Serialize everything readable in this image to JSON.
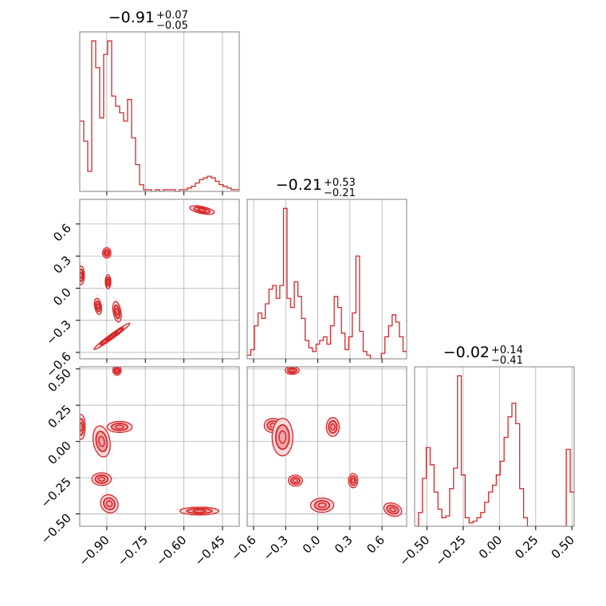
{
  "colors": {
    "line": "#d62728",
    "fill_inner": "#f2a7ad",
    "fill_outer": "#fbdadd",
    "grid": "#b0b0b0",
    "frame": "#808080"
  },
  "chart_data": {
    "type": "corner",
    "title": "",
    "grid": true,
    "parameters": [
      {
        "title": {
          "center": "−0.91",
          "upper": "+0.07",
          "lower": "−0.05"
        },
        "range": [
          -1.005,
          -0.385
        ],
        "ticks": [
          -0.9,
          -0.75,
          -0.6,
          -0.45
        ],
        "tick_labels": [
          "−0.90",
          "−0.75",
          "−0.60",
          "−0.45"
        ]
      },
      {
        "title": {
          "center": "−0.21",
          "upper": "+0.53",
          "lower": "−0.21"
        },
        "range": [
          -0.66,
          0.83
        ],
        "ticks": [
          -0.6,
          -0.3,
          0.0,
          0.3,
          0.6
        ],
        "tick_labels": [
          "−0.6",
          "−0.3",
          "0.0",
          "0.3",
          "0.6"
        ]
      },
      {
        "title": {
          "center": "−0.02",
          "upper": "+0.14",
          "lower": "−0.41"
        },
        "range": [
          -0.585,
          0.515
        ],
        "ticks": [
          -0.5,
          -0.25,
          0.0,
          0.25,
          0.5
        ],
        "tick_labels": [
          "−0.50",
          "−0.25",
          "0.00",
          "0.25",
          "0.50"
        ]
      }
    ],
    "histograms": [
      {
        "parameter": 0,
        "bin_edges_range": [
          -1.005,
          -0.385
        ],
        "counts": [
          42,
          30,
          12,
          90,
          74,
          44,
          82,
          90,
          57,
          51,
          47,
          42,
          55,
          32,
          16,
          4,
          1,
          1,
          0,
          1,
          0,
          1,
          1,
          1,
          0,
          1,
          1,
          2,
          3,
          5,
          7,
          8,
          9,
          8,
          6,
          4,
          3,
          2,
          1,
          1
        ]
      },
      {
        "parameter": 1,
        "bin_edges_range": [
          -0.66,
          0.83
        ],
        "counts": [
          2,
          5,
          18,
          25,
          22,
          30,
          38,
          40,
          33,
          40,
          82,
          33,
          28,
          42,
          34,
          22,
          10,
          6,
          4,
          8,
          10,
          12,
          8,
          18,
          34,
          28,
          14,
          5,
          12,
          25,
          56,
          15,
          4,
          2,
          0,
          0,
          0,
          3,
          12,
          18,
          24,
          20,
          12,
          4
        ]
      },
      {
        "parameter": 2,
        "bin_edges_range": [
          -0.585,
          0.515
        ],
        "counts": [
          0,
          8,
          28,
          46,
          36,
          20,
          10,
          5,
          6,
          22,
          34,
          88,
          30,
          5,
          2,
          3,
          5,
          8,
          14,
          20,
          24,
          30,
          38,
          52,
          64,
          72,
          60,
          22,
          5,
          0,
          0,
          0,
          0,
          0,
          0,
          0,
          0,
          0,
          0,
          45,
          20
        ]
      }
    ],
    "panels_2d": [
      {
        "x_param": 0,
        "y_param": 1,
        "blobs": [
          {
            "cx": -0.53,
            "cy": 0.73,
            "rx": 0.045,
            "ry": 0.03,
            "angle": -12
          },
          {
            "cx": -1.0,
            "cy": 0.12,
            "rx": 0.012,
            "ry": 0.08,
            "angle": 0
          },
          {
            "cx": -0.9,
            "cy": 0.33,
            "rx": 0.015,
            "ry": 0.045,
            "angle": 0
          },
          {
            "cx": -0.895,
            "cy": 0.06,
            "rx": 0.01,
            "ry": 0.06,
            "angle": 0
          },
          {
            "cx": -0.934,
            "cy": -0.17,
            "rx": 0.012,
            "ry": 0.07,
            "angle": 10
          },
          {
            "cx": -0.86,
            "cy": -0.22,
            "rx": 0.014,
            "ry": 0.09,
            "angle": 10
          },
          {
            "cx": -0.88,
            "cy": -0.45,
            "rx": 0.08,
            "ry": 0.02,
            "angle": 36
          }
        ]
      },
      {
        "x_param": 0,
        "y_param": 2,
        "blobs": [
          {
            "cx": -0.86,
            "cy": 0.49,
            "rx": 0.015,
            "ry": 0.03,
            "angle": 0
          },
          {
            "cx": -1.0,
            "cy": 0.1,
            "rx": 0.015,
            "ry": 0.08,
            "angle": 0
          },
          {
            "cx": -0.85,
            "cy": 0.1,
            "rx": 0.045,
            "ry": 0.035,
            "angle": 0
          },
          {
            "cx": -0.92,
            "cy": 0.0,
            "rx": 0.03,
            "ry": 0.1,
            "angle": 10
          },
          {
            "cx": -0.92,
            "cy": -0.26,
            "rx": 0.035,
            "ry": 0.04,
            "angle": 0
          },
          {
            "cx": -0.89,
            "cy": -0.43,
            "rx": 0.03,
            "ry": 0.06,
            "angle": 40
          },
          {
            "cx": -0.54,
            "cy": -0.48,
            "rx": 0.07,
            "ry": 0.025,
            "angle": 0
          }
        ]
      },
      {
        "x_param": 1,
        "y_param": 2,
        "blobs": [
          {
            "cx": -0.24,
            "cy": 0.49,
            "rx": 0.06,
            "ry": 0.025,
            "angle": 0
          },
          {
            "cx": -0.42,
            "cy": 0.11,
            "rx": 0.075,
            "ry": 0.045,
            "angle": 0
          },
          {
            "cx": -0.33,
            "cy": 0.03,
            "rx": 0.09,
            "ry": 0.12,
            "angle": 0
          },
          {
            "cx": 0.14,
            "cy": 0.1,
            "rx": 0.055,
            "ry": 0.06,
            "angle": 0
          },
          {
            "cx": -0.21,
            "cy": -0.27,
            "rx": 0.06,
            "ry": 0.035,
            "angle": 0
          },
          {
            "cx": 0.33,
            "cy": -0.27,
            "rx": 0.04,
            "ry": 0.045,
            "angle": 0
          },
          {
            "cx": 0.04,
            "cy": -0.44,
            "rx": 0.1,
            "ry": 0.045,
            "angle": 0
          },
          {
            "cx": 0.7,
            "cy": -0.47,
            "rx": 0.08,
            "ry": 0.04,
            "angle": -20
          }
        ]
      }
    ]
  }
}
